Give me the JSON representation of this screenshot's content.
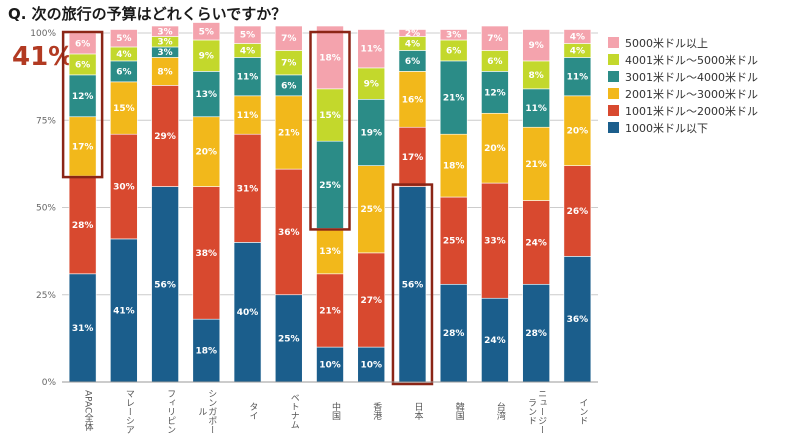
{
  "title": "Q. 次の旅行の予算はどれくらいですか？",
  "callout": "41%",
  "legend": [
    {
      "label": "5000米ドル以上",
      "color": "#f4a3ad"
    },
    {
      "label": "4001米ドル〜5000米ドル",
      "color": "#c3d82c"
    },
    {
      "label": "3001米ドル〜4000米ドル",
      "color": "#2b8c87"
    },
    {
      "label": "2001米ドル〜3000米ドル",
      "color": "#f2b81b"
    },
    {
      "label": "1001米ドル〜2000米ドル",
      "color": "#d8492f"
    },
    {
      "label": "1000米ドル以下",
      "color": "#1b5e8c"
    }
  ],
  "highlight_color": "#8b2516",
  "chart_data": {
    "type": "bar",
    "stacked": true,
    "title": "Q. 次の旅行の予算はどれくらいですか？",
    "categories": [
      "APAC全体",
      "マレーシア",
      "フィリピン",
      "シンガポール",
      "タイ",
      "ベトナム",
      "中国",
      "香港",
      "日本",
      "韓国",
      "台湾",
      "ニュージーランド",
      "インド"
    ],
    "ylim": [
      0,
      100
    ],
    "yticks": [
      "0%",
      "25%",
      "50%",
      "75%",
      "100%"
    ],
    "highlighted_categories": [
      "中国",
      "日本"
    ],
    "highlighted_segments": [
      {
        "category": "APAC全体",
        "series": [
          "2001米ドル〜3000米ドル",
          "3001米ドル〜4000米ドル",
          "4001米ドル〜5000米ドル",
          "5000米ドル以上"
        ]
      }
    ],
    "series": [
      {
        "name": "1000米ドル以下",
        "color": "#1b5e8c",
        "values": [
          31,
          41,
          56,
          18,
          40,
          25,
          10,
          10,
          56,
          28,
          24,
          28,
          36
        ]
      },
      {
        "name": "1001米ドル〜2000米ドル",
        "color": "#d8492f",
        "values": [
          28,
          30,
          29,
          38,
          31,
          36,
          21,
          27,
          17,
          25,
          33,
          24,
          26
        ]
      },
      {
        "name": "2001米ドル〜3000米ドル",
        "color": "#f2b81b",
        "values": [
          17,
          15,
          8,
          20,
          11,
          21,
          13,
          25,
          16,
          18,
          20,
          21,
          20
        ]
      },
      {
        "name": "3001米ドル〜4000米ドル",
        "color": "#2b8c87",
        "values": [
          12,
          6,
          3,
          13,
          11,
          6,
          25,
          19,
          6,
          21,
          12,
          11,
          11
        ]
      },
      {
        "name": "4001米ドル〜5000米ドル",
        "color": "#c3d82c",
        "values": [
          6,
          4,
          3,
          9,
          4,
          7,
          15,
          9,
          4,
          6,
          6,
          8,
          4
        ]
      },
      {
        "name": "5000米ドル以上",
        "color": "#f4a3ad",
        "values": [
          6,
          5,
          3,
          5,
          5,
          7,
          18,
          11,
          2,
          3,
          7,
          9,
          4
        ]
      }
    ]
  }
}
